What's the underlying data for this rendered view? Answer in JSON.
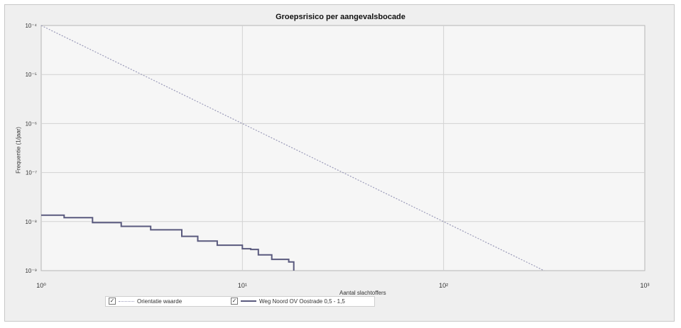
{
  "chart_data": {
    "type": "line",
    "title": "Groepsrisico per aangevalsbocade",
    "xlabel": "Aantal slachtoffers",
    "ylabel": "Frequentie (1/jaar)",
    "xscale": "log",
    "yscale": "log",
    "xlim": [
      1,
      1000
    ],
    "ylim": [
      1e-09,
      0.0001
    ],
    "x_ticks": [
      "10⁰",
      "10¹",
      "10²",
      "10³"
    ],
    "y_ticks": [
      "10⁻⁴",
      "10⁻⁵",
      "10⁻⁶",
      "10⁻⁷",
      "10⁻⁸",
      "10⁻⁹"
    ],
    "grid": true,
    "legend_position": "bottom",
    "series": [
      {
        "name": "Orientatie waarde",
        "color": "#9a9ab8",
        "style": "dotted",
        "points": [
          [
            1,
            0.0001
          ],
          [
            316,
            1e-09
          ]
        ]
      },
      {
        "name": "Weg Noord OV Oostrade 0,5 - 1,5",
        "color": "#5a5a7e",
        "style": "solid",
        "points": [
          [
            1,
            1.35e-08
          ],
          [
            1.3,
            1.2e-08
          ],
          [
            1.8,
            9.5e-09
          ],
          [
            2.5,
            8e-09
          ],
          [
            3.5,
            6.8e-09
          ],
          [
            5,
            5e-09
          ],
          [
            6,
            4e-09
          ],
          [
            7.5,
            3.3e-09
          ],
          [
            10,
            2.8e-09
          ],
          [
            11,
            2.7e-09
          ],
          [
            12,
            2.1e-09
          ],
          [
            14,
            1.7e-09
          ],
          [
            17,
            1.5e-09
          ],
          [
            18,
            1e-09
          ]
        ]
      }
    ]
  },
  "legend": {
    "check_mark": "✓"
  }
}
